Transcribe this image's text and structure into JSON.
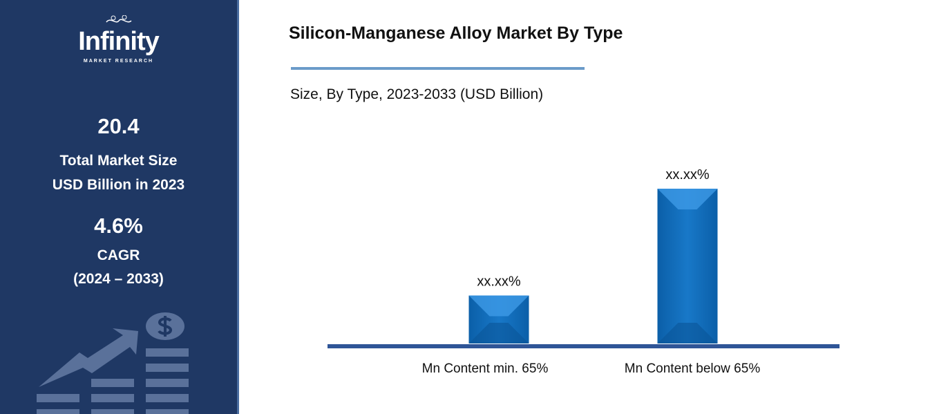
{
  "sidebar": {
    "logo": {
      "name": "Infinity",
      "tagline": "MARKET RESEARCH"
    },
    "market_size_value": "20.4",
    "market_size_label_1": "Total Market Size",
    "market_size_label_2": "USD Billion in 2023",
    "cagr_value": "4.6%",
    "cagr_label": "CAGR",
    "cagr_period": "(2024 – 2033)",
    "background_color": "#1f3864"
  },
  "header": {
    "title": "Silicon-Manganese Alloy Market By Type",
    "subtitle": "Size, By Type, 2023-2033 (USD Billion)"
  },
  "chart_data": {
    "type": "bar",
    "categories": [
      "Mn Content min. 65%",
      "Mn Content below 65%"
    ],
    "values": [
      31,
      100
    ],
    "data_labels": [
      "xx.xx%",
      "xx.xx%"
    ],
    "title": "Silicon-Manganese Alloy Market By Type",
    "subtitle": "Size, By Type, 2023-2033 (USD Billion)",
    "xlabel": "",
    "ylabel": "",
    "ylim": [
      0,
      100
    ],
    "grid": false,
    "bar_color": "#1170c0",
    "axis_color": "#2f5597"
  }
}
